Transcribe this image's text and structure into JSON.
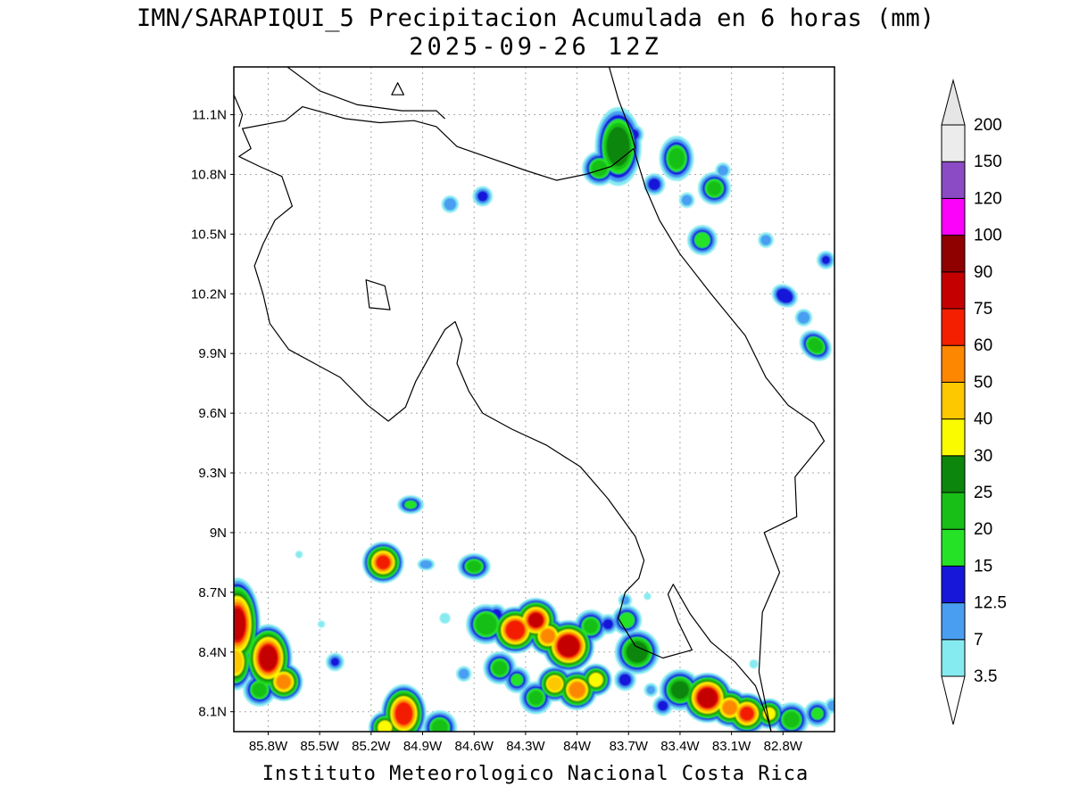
{
  "title": {
    "line1": "IMN/SARAPIQUI_5 Precipitacion Acumulada en 6 horas (mm)",
    "line2": "2025-09-26 12Z"
  },
  "footer": "Instituto Meteorologico Nacional Costa Rica",
  "chart_data": {
    "type": "heatmap",
    "title": "IMN/SARAPIQUI_5 Precipitacion Acumulada en 6 horas (mm)",
    "subtitle": "2025-09-26 12Z",
    "units": "mm",
    "grid": true,
    "lon_range": [
      -86.0,
      -82.5
    ],
    "lat_range": [
      8.0,
      11.34
    ],
    "x_ticks": [
      {
        "label": "85.8W",
        "lon": -85.8
      },
      {
        "label": "85.5W",
        "lon": -85.5
      },
      {
        "label": "85.2W",
        "lon": -85.2
      },
      {
        "label": "84.9W",
        "lon": -84.9
      },
      {
        "label": "84.6W",
        "lon": -84.6
      },
      {
        "label": "84.3W",
        "lon": -84.3
      },
      {
        "label": "84W",
        "lon": -84.0
      },
      {
        "label": "83.7W",
        "lon": -83.7
      },
      {
        "label": "83.4W",
        "lon": -83.4
      },
      {
        "label": "83.1W",
        "lon": -83.1
      },
      {
        "label": "82.8W",
        "lon": -82.8
      }
    ],
    "y_ticks": [
      {
        "label": "11.1N",
        "lat": 11.1
      },
      {
        "label": "10.8N",
        "lat": 10.8
      },
      {
        "label": "10.5N",
        "lat": 10.5
      },
      {
        "label": "10.2N",
        "lat": 10.2
      },
      {
        "label": "9.9N",
        "lat": 9.9
      },
      {
        "label": "9.6N",
        "lat": 9.6
      },
      {
        "label": "9.3N",
        "lat": 9.3
      },
      {
        "label": "9N",
        "lat": 9.0
      },
      {
        "label": "8.7N",
        "lat": 8.7
      },
      {
        "label": "8.4N",
        "lat": 8.4
      },
      {
        "label": "8.1N",
        "lat": 8.1
      }
    ],
    "colorbar": {
      "levels": [
        "3.5",
        "7",
        "12.5",
        "15",
        "20",
        "25",
        "30",
        "40",
        "50",
        "60",
        "75",
        "90",
        "100",
        "120",
        "150",
        "200"
      ],
      "colors": [
        "#86ebf0",
        "#4a9ef2",
        "#1717d9",
        "#26e226",
        "#17bf17",
        "#0c860c",
        "#fbfb00",
        "#fdc800",
        "#fd8700",
        "#f41f00",
        "#c50000",
        "#8f0000",
        "#fb02fb",
        "#8b4bc4",
        "#ececec"
      ],
      "over_color": "#e6e6e6",
      "under_color": "#ffffff"
    },
    "cell_format": "[lon, lat, intensity_level_index_into_colors, core_radius_px, aspect_ratio?, rotation_deg?]",
    "cells": [
      [
        -83.76,
        10.94,
        5,
        13,
        1.7
      ],
      [
        -83.87,
        10.83,
        4,
        9
      ],
      [
        -83.42,
        10.88,
        4,
        9,
        1.3
      ],
      [
        -83.2,
        10.73,
        4,
        8
      ],
      [
        -83.55,
        10.75,
        2,
        7
      ],
      [
        -83.36,
        10.67,
        1,
        6
      ],
      [
        -83.67,
        11.0,
        2,
        6
      ],
      [
        -83.75,
        11.06,
        1,
        5
      ],
      [
        -83.15,
        10.82,
        1,
        6
      ],
      [
        -84.74,
        10.65,
        1,
        7
      ],
      [
        -84.55,
        10.69,
        2,
        6
      ],
      [
        -83.27,
        10.47,
        3,
        9
      ],
      [
        -82.9,
        10.47,
        1,
        6
      ],
      [
        -82.55,
        10.37,
        2,
        5
      ],
      [
        -82.79,
        10.19,
        2,
        10,
        0.8,
        30
      ],
      [
        -82.68,
        10.08,
        1,
        7
      ],
      [
        -82.61,
        9.94,
        4,
        9,
        0.8,
        40
      ],
      [
        -84.97,
        9.14,
        3,
        7,
        0.7
      ],
      [
        -85.62,
        8.89,
        0,
        4
      ],
      [
        -85.13,
        8.85,
        9,
        8
      ],
      [
        -84.88,
        8.84,
        1,
        7,
        0.7
      ],
      [
        -84.6,
        8.83,
        4,
        8,
        0.8
      ],
      [
        -85.98,
        8.54,
        10,
        9,
        2.0
      ],
      [
        -85.99,
        8.35,
        7,
        8,
        1.6
      ],
      [
        -85.8,
        8.37,
        10,
        10,
        1.4
      ],
      [
        -85.71,
        8.25,
        8,
        8
      ],
      [
        -85.85,
        8.21,
        4,
        8
      ],
      [
        -85.41,
        8.35,
        2,
        5
      ],
      [
        -85.01,
        8.09,
        9,
        10,
        1.3
      ],
      [
        -85.12,
        8.02,
        6,
        8
      ],
      [
        -84.8,
        8.02,
        4,
        9
      ],
      [
        -84.53,
        8.54,
        4,
        12
      ],
      [
        -84.47,
        8.59,
        2,
        6
      ],
      [
        -84.36,
        8.51,
        9,
        11
      ],
      [
        -84.24,
        8.56,
        10,
        8
      ],
      [
        -84.17,
        8.48,
        8,
        8
      ],
      [
        -84.05,
        8.43,
        10,
        12
      ],
      [
        -83.92,
        8.53,
        4,
        8
      ],
      [
        -83.82,
        8.54,
        2,
        6
      ],
      [
        -83.71,
        8.56,
        3,
        9
      ],
      [
        -83.65,
        8.4,
        5,
        12
      ],
      [
        -83.72,
        8.26,
        2,
        7
      ],
      [
        -83.89,
        8.26,
        6,
        8
      ],
      [
        -84.0,
        8.21,
        8,
        9
      ],
      [
        -84.13,
        8.24,
        7,
        8
      ],
      [
        -84.24,
        8.17,
        4,
        8
      ],
      [
        -84.35,
        8.26,
        3,
        7
      ],
      [
        -84.45,
        8.32,
        4,
        8
      ],
      [
        -83.4,
        8.21,
        5,
        10
      ],
      [
        -83.24,
        8.17,
        10,
        11
      ],
      [
        -83.11,
        8.12,
        8,
        8
      ],
      [
        -83.01,
        8.09,
        9,
        8
      ],
      [
        -82.88,
        8.09,
        6,
        7
      ],
      [
        -82.75,
        8.06,
        4,
        9
      ],
      [
        -82.6,
        8.09,
        3,
        7
      ],
      [
        -82.51,
        8.13,
        1,
        6
      ],
      [
        -83.5,
        8.13,
        2,
        6
      ],
      [
        -83.57,
        8.21,
        1,
        5
      ],
      [
        -84.77,
        8.57,
        0,
        6
      ],
      [
        -84.66,
        8.29,
        1,
        6
      ],
      [
        -82.97,
        8.34,
        0,
        5
      ],
      [
        -85.49,
        8.54,
        0,
        4
      ],
      [
        -83.72,
        8.66,
        1,
        5
      ],
      [
        -83.59,
        8.68,
        0,
        4
      ]
    ]
  }
}
